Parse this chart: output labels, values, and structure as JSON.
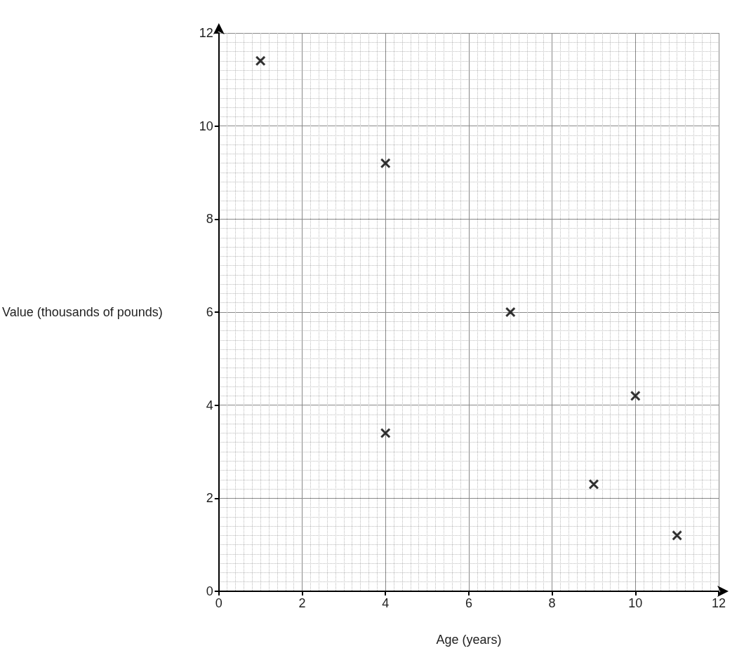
{
  "chart_data": {
    "type": "scatter",
    "xlabel": "Age (years)",
    "ylabel": "Value (thousands of pounds)",
    "x": [
      1,
      4,
      7,
      4,
      10,
      9,
      11
    ],
    "values": [
      11.4,
      9.2,
      6.0,
      3.4,
      4.2,
      2.3,
      1.2
    ],
    "color": "#222222",
    "marker": "cross",
    "xlim": [
      0,
      12
    ],
    "xticks": [
      0,
      2,
      4,
      6,
      8,
      10,
      12
    ],
    "ylim": [
      0,
      12
    ],
    "yticks": [
      0,
      2,
      4,
      6,
      8,
      10,
      12
    ],
    "grid": true
  }
}
